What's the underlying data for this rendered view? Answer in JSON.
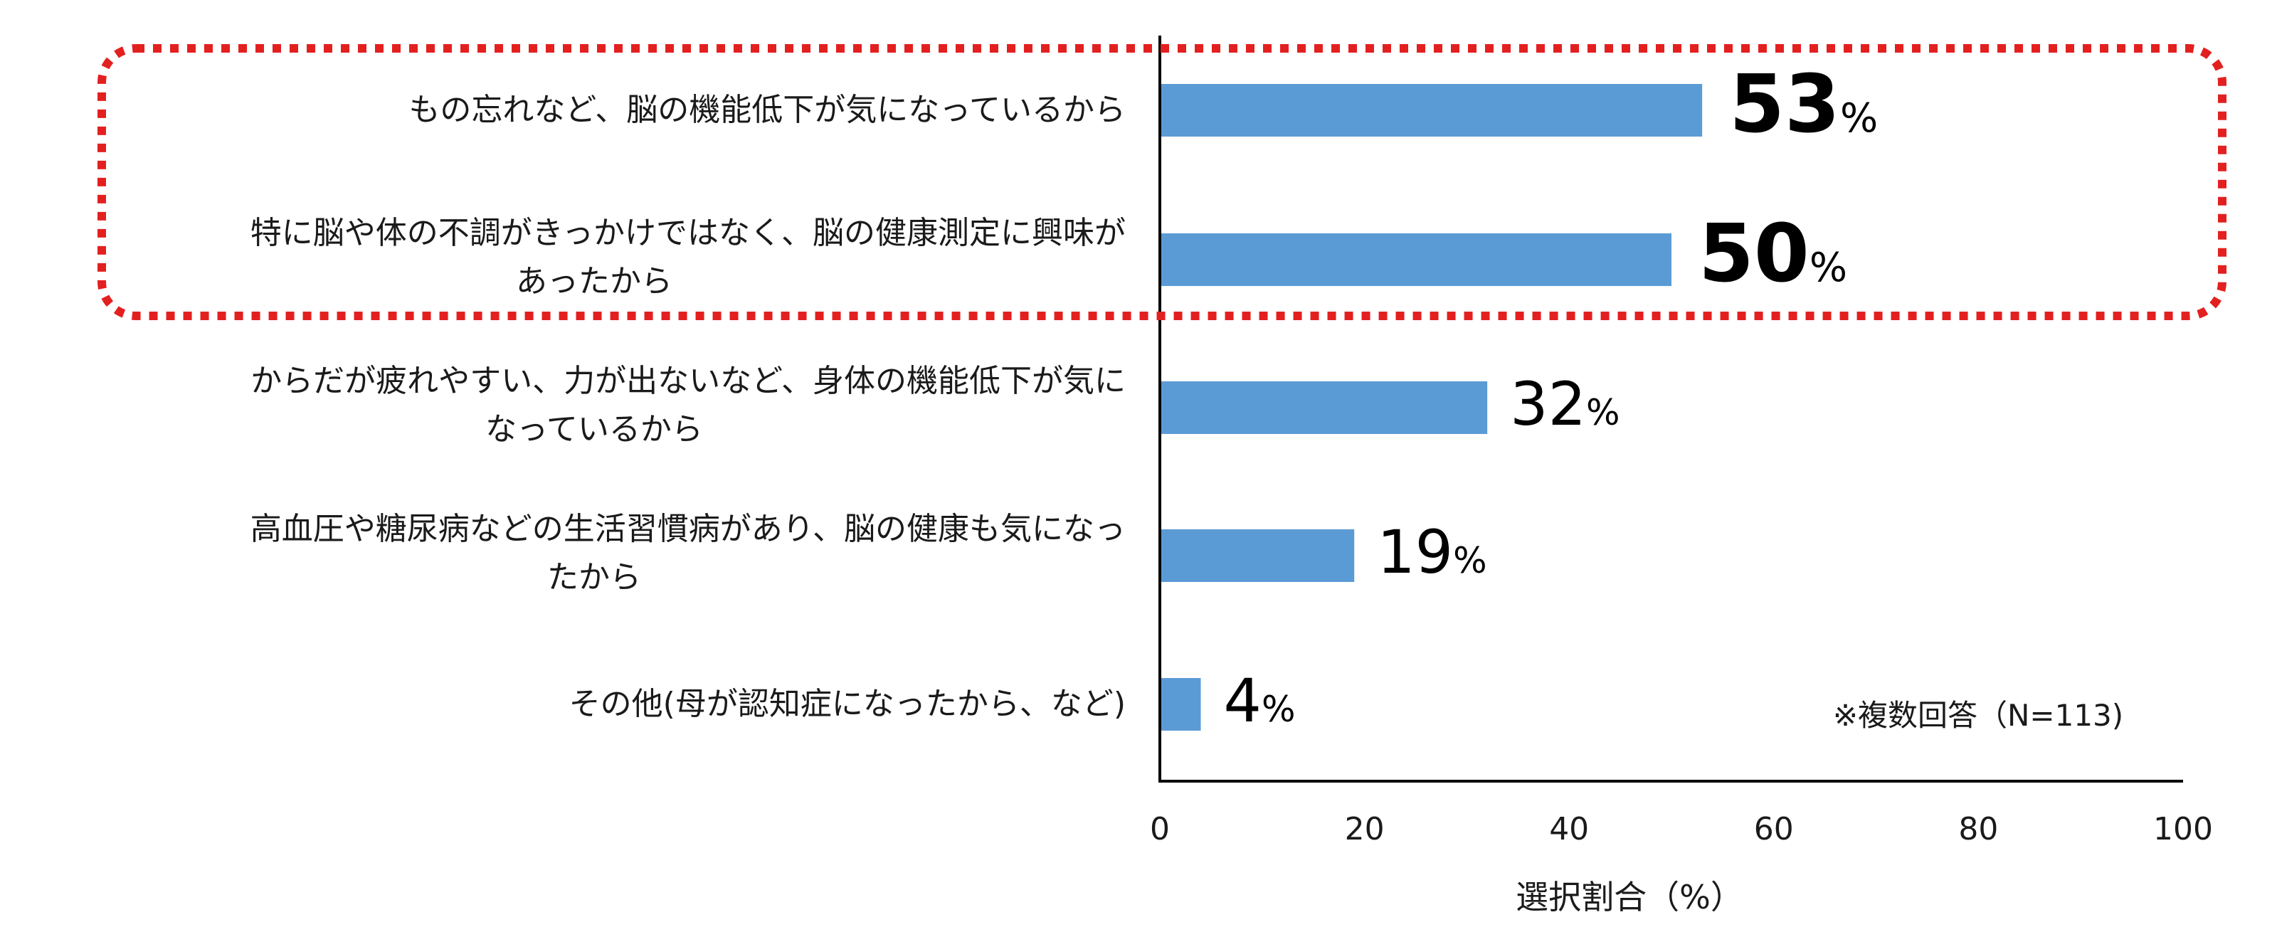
{
  "chart_data": {
    "type": "bar",
    "orientation": "horizontal",
    "categories": [
      [
        "もの忘れなど、脳の機能低下が気になっているから"
      ],
      [
        "特に脳や体の不調がきっかけではなく、脳の健康測定に興味が",
        "あったから"
      ],
      [
        "からだが疲れやすい、力が出ないなど、身体の機能低下が気に",
        "なっているから"
      ],
      [
        "高血圧や糖尿病などの生活習慣病があり、脳の健康も気になっ",
        "たから"
      ],
      [
        "その他(母が認知症になったから、など)"
      ]
    ],
    "values": [
      53,
      50,
      32,
      19,
      4
    ],
    "value_unit": "%",
    "xlim": [
      0,
      100
    ],
    "xticks": [
      "0",
      "20",
      "40",
      "60",
      "80",
      "100"
    ],
    "xlabel": "選択割合（%）",
    "note": "※複数回答（N=113)",
    "highlighted_indices": [
      0,
      1
    ],
    "colors": {
      "bar": "#5b9bd5",
      "highlight": "#e32020",
      "axis": "#000000"
    }
  }
}
